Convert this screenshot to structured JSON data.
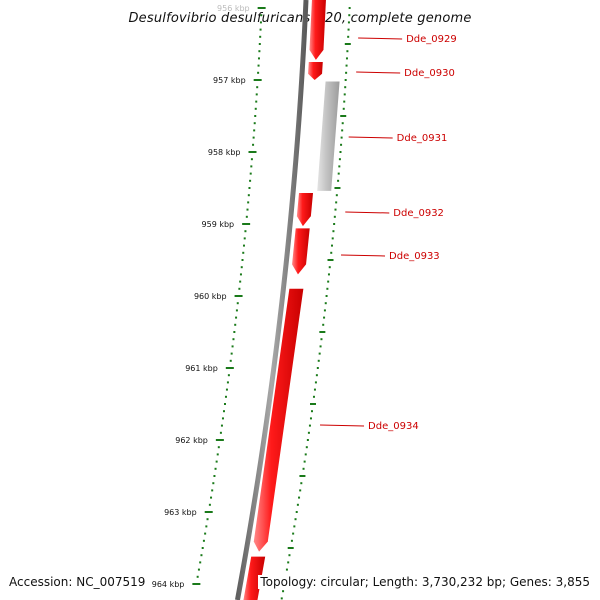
{
  "title": "Desulfovibrio desulfuricans G20, complete genome",
  "accession_label": "Accession: NC_007519",
  "summary": "Topology: circular; Length: 3,730,232 bp; Genes: 3,855",
  "colors": {
    "gene_forward": "#ee0000",
    "gene_other": "#b8b8b8",
    "backbone": "#808080",
    "ticks": "#1a7a1a",
    "label": "#cc0000"
  },
  "ruler": {
    "unit": "kbp",
    "ticks": [
      956,
      957,
      958,
      959,
      960,
      961,
      962,
      963,
      964
    ]
  },
  "genes": [
    {
      "id": "Dde_0929",
      "label": "Dde_0929",
      "start_kbp": 955.8,
      "end_kbp": 956.72,
      "strand": "+",
      "color": "red"
    },
    {
      "id": "Dde_0930",
      "label": "Dde_0930",
      "start_kbp": 956.75,
      "end_kbp": 957.0,
      "strand": "+",
      "color": "red"
    },
    {
      "id": "Dde_0931",
      "label": "Dde_0931",
      "start_kbp": 957.02,
      "end_kbp": 958.54,
      "strand": "-",
      "color": "grey"
    },
    {
      "id": "Dde_0932",
      "label": "Dde_0932",
      "start_kbp": 958.57,
      "end_kbp": 959.03,
      "strand": "+",
      "color": "red"
    },
    {
      "id": "Dde_0933",
      "label": "Dde_0933",
      "start_kbp": 959.06,
      "end_kbp": 959.7,
      "strand": "+",
      "color": "red"
    },
    {
      "id": "Dde_0934",
      "label": "Dde_0934",
      "start_kbp": 959.9,
      "end_kbp": 963.55,
      "strand": "+",
      "color": "red"
    },
    {
      "id": "next",
      "label": "",
      "start_kbp": 963.62,
      "end_kbp": 964.4,
      "strand": "+",
      "color": "red"
    }
  ]
}
